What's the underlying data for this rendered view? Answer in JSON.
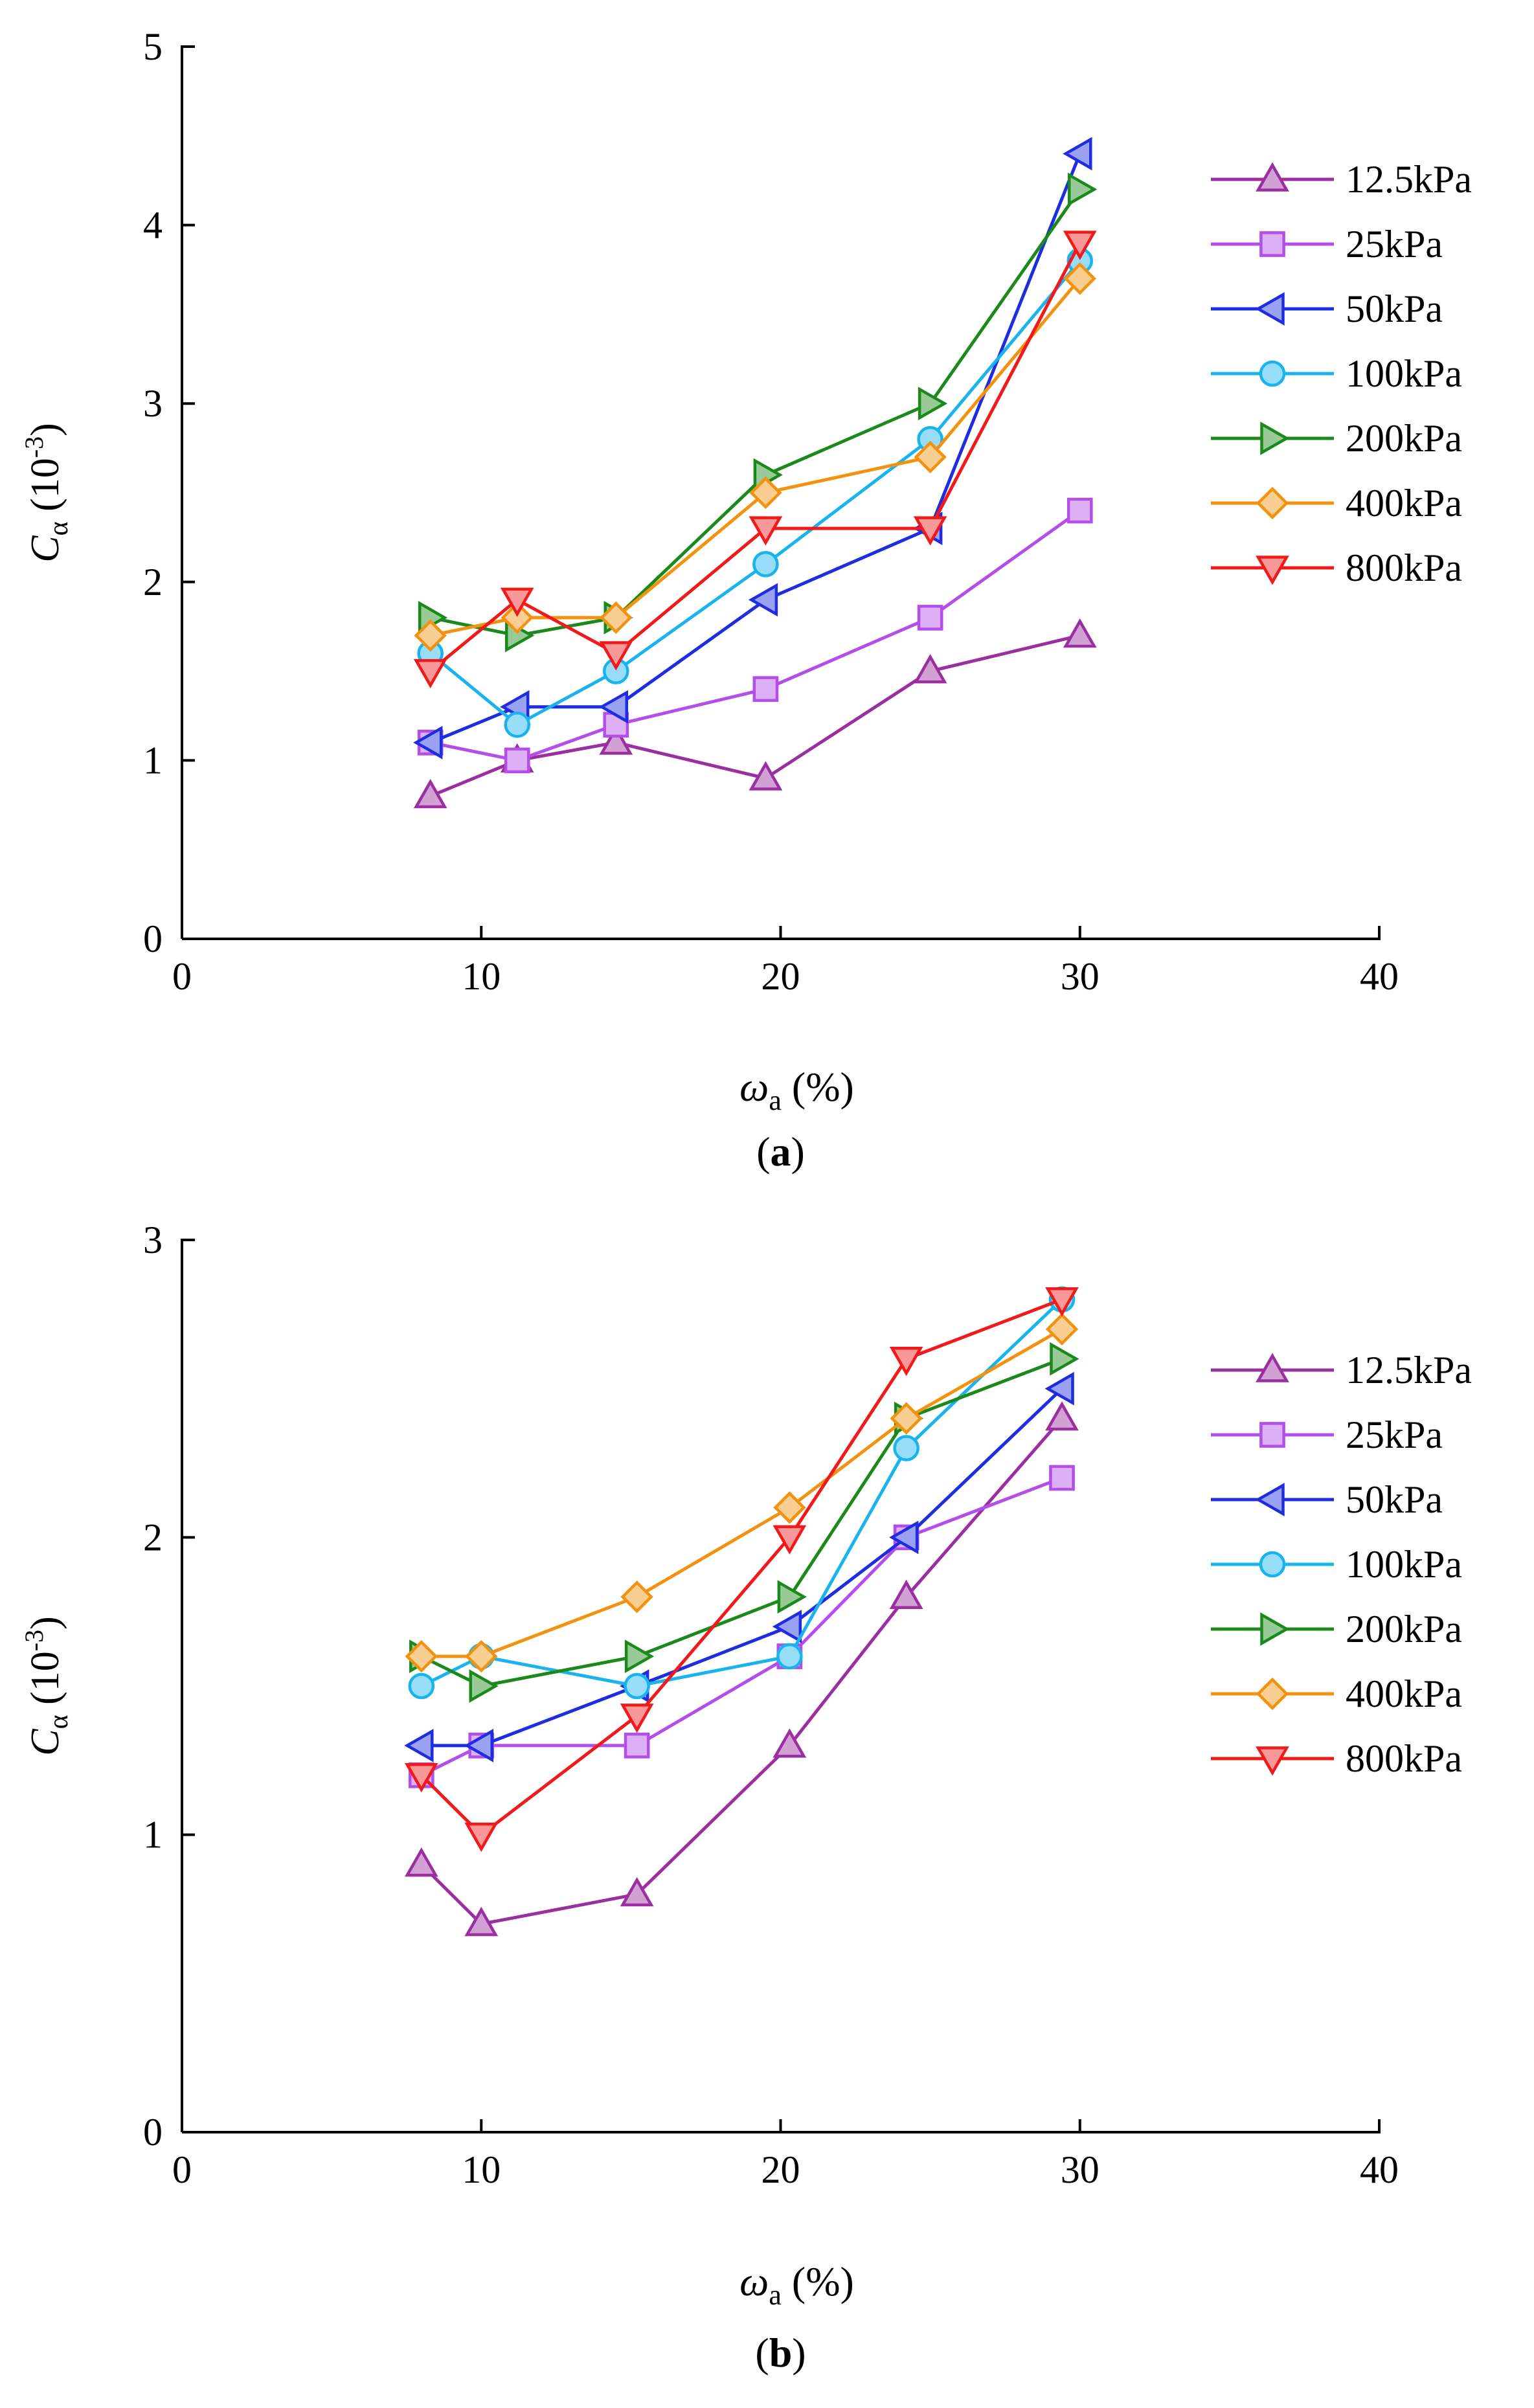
{
  "chart_data": [
    {
      "type": "line",
      "panel_label": "a",
      "ylabel_main": "C",
      "ylabel_sub": "α",
      "ylabel_unit": "(10",
      "ylabel_exp": "-3",
      "ylabel_close": ")",
      "xlabel_main": "ω",
      "xlabel_sub": "a",
      "xlabel_unit": "(%)",
      "xlim": [
        0,
        40
      ],
      "ylim": [
        0,
        5
      ],
      "xticks": [
        0,
        10,
        20,
        30,
        40
      ],
      "yticks": [
        0,
        1,
        2,
        3,
        4,
        5
      ],
      "x": [
        8.3,
        11.2,
        14.5,
        19.5,
        25,
        30
      ],
      "series": [
        {
          "name": "12.5kPa",
          "color": "#9b2ea0",
          "marker": "triangle-up",
          "y": [
            0.8,
            1.0,
            1.1,
            0.9,
            1.5,
            1.7
          ]
        },
        {
          "name": "25kPa",
          "color": "#b44ee8",
          "marker": "square",
          "y": [
            1.1,
            1.0,
            1.2,
            1.4,
            1.8,
            2.4
          ]
        },
        {
          "name": "50kPa",
          "color": "#1f2de0",
          "marker": "triangle-left",
          "y": [
            1.1,
            1.3,
            1.3,
            1.9,
            2.3,
            4.4
          ]
        },
        {
          "name": "100kPa",
          "color": "#19b4ee",
          "marker": "circle",
          "y": [
            1.6,
            1.2,
            1.5,
            2.1,
            2.8,
            3.8
          ]
        },
        {
          "name": "200kPa",
          "color": "#1b8a1b",
          "marker": "triangle-right",
          "y": [
            1.8,
            1.7,
            1.8,
            2.6,
            3.0,
            4.2
          ]
        },
        {
          "name": "400kPa",
          "color": "#f2920f",
          "marker": "diamond",
          "y": [
            1.7,
            1.8,
            1.8,
            2.5,
            2.7,
            3.7
          ]
        },
        {
          "name": "800kPa",
          "color": "#f01a1a",
          "marker": "triangle-down",
          "y": [
            1.5,
            1.9,
            1.6,
            2.3,
            2.3,
            3.9
          ]
        }
      ]
    },
    {
      "type": "line",
      "panel_label": "b",
      "ylabel_main": "C",
      "ylabel_sub": "α",
      "ylabel_unit": "(10",
      "ylabel_exp": "-3",
      "ylabel_close": ")",
      "xlabel_main": "ω",
      "xlabel_sub": "a",
      "xlabel_unit": "(%)",
      "xlim": [
        0,
        40
      ],
      "ylim": [
        0,
        3
      ],
      "xticks": [
        0,
        10,
        20,
        30,
        40
      ],
      "yticks": [
        0,
        1,
        2,
        3
      ],
      "x": [
        8,
        10,
        15.2,
        20.3,
        24.2,
        29.4
      ],
      "series": [
        {
          "name": "12.5kPa",
          "color": "#9b2ea0",
          "marker": "triangle-up",
          "y": [
            0.9,
            0.7,
            0.8,
            1.3,
            1.8,
            2.4
          ]
        },
        {
          "name": "25kPa",
          "color": "#b44ee8",
          "marker": "square",
          "y": [
            1.2,
            1.3,
            1.3,
            1.6,
            2.0,
            2.2
          ]
        },
        {
          "name": "50kPa",
          "color": "#1f2de0",
          "marker": "triangle-left",
          "y": [
            1.3,
            1.3,
            1.5,
            1.7,
            2.0,
            2.5
          ]
        },
        {
          "name": "100kPa",
          "color": "#19b4ee",
          "marker": "circle",
          "y": [
            1.5,
            1.6,
            1.5,
            1.6,
            2.3,
            2.8
          ]
        },
        {
          "name": "200kPa",
          "color": "#1b8a1b",
          "marker": "triangle-right",
          "y": [
            1.6,
            1.5,
            1.6,
            1.8,
            2.4,
            2.6
          ]
        },
        {
          "name": "400kPa",
          "color": "#f2920f",
          "marker": "diamond",
          "y": [
            1.6,
            1.6,
            1.8,
            2.1,
            2.4,
            2.7
          ]
        },
        {
          "name": "800kPa",
          "color": "#f01a1a",
          "marker": "triangle-down",
          "y": [
            1.2,
            1.0,
            1.4,
            2.0,
            2.6,
            2.8
          ]
        }
      ]
    }
  ]
}
